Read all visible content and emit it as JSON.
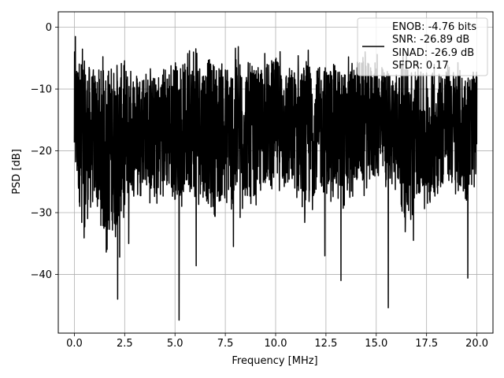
{
  "chart_data": {
    "type": "line",
    "title": "",
    "xlabel": "Frequency [MHz]",
    "ylabel": "PSD [dB]",
    "xlim": [
      -0.8,
      20.8
    ],
    "ylim": [
      -49.5,
      2.5
    ],
    "x_ticks": [
      0.0,
      2.5,
      5.0,
      7.5,
      10.0,
      12.5,
      15.0,
      17.5,
      20.0
    ],
    "x_tick_labels": [
      "0.0",
      "2.5",
      "5.0",
      "7.5",
      "10.0",
      "12.5",
      "15.0",
      "17.5",
      "20.0"
    ],
    "y_ticks": [
      0,
      -10,
      -20,
      -30,
      -40
    ],
    "y_tick_labels": [
      "0",
      "−10",
      "−20",
      "−30",
      "−40"
    ],
    "grid": true,
    "legend_position": "top-right",
    "legend_entries": [
      "ENOB: -4.76 bits",
      "SNR: -26.89 dB",
      "SINAD: -26.9 dB",
      "SFDR: 0.17"
    ],
    "series_color": "#000000",
    "series": [
      {
        "x_range": [
          0.0,
          20.0
        ],
        "upper_envelope_db": [
          -2,
          -3,
          -5,
          -4,
          -3,
          -4,
          -5,
          -5,
          -6,
          -4,
          -3,
          -4,
          -3,
          -3,
          -3,
          -4,
          -3,
          -3,
          -5,
          -4,
          -3,
          -4,
          -5,
          -3,
          -5,
          -4,
          -4,
          -5,
          -3,
          -4,
          -4,
          -5,
          -5,
          -3,
          -5,
          -6,
          -5,
          -4,
          -5,
          -5,
          -6
        ],
        "lower_envelope_db": [
          -27,
          -35,
          -30,
          -37,
          -35,
          -31,
          -28,
          -27,
          -30,
          -28,
          -30,
          -29,
          -28,
          -30,
          -33,
          -28,
          -32,
          -30,
          -29,
          -27,
          -28,
          -29,
          -28,
          -33,
          -28,
          -29,
          -30,
          -32,
          -27,
          -28,
          -26,
          -27,
          -27,
          -35,
          -29,
          -30,
          -28,
          -27,
          -28,
          -30,
          -25
        ],
        "spikes": [
          {
            "x": 0.05,
            "y": -1.5
          },
          {
            "x": 2.15,
            "y": -44.0
          },
          {
            "x": 2.25,
            "y": -37.2
          },
          {
            "x": 2.7,
            "y": -35.0
          },
          {
            "x": 5.2,
            "y": -47.4
          },
          {
            "x": 6.05,
            "y": -38.6
          },
          {
            "x": 7.9,
            "y": -35.5
          },
          {
            "x": 12.45,
            "y": -37.0
          },
          {
            "x": 13.25,
            "y": -41.0
          },
          {
            "x": 15.6,
            "y": -45.4
          },
          {
            "x": 16.85,
            "y": -34.5
          },
          {
            "x": 19.55,
            "y": -40.6
          }
        ]
      }
    ]
  }
}
